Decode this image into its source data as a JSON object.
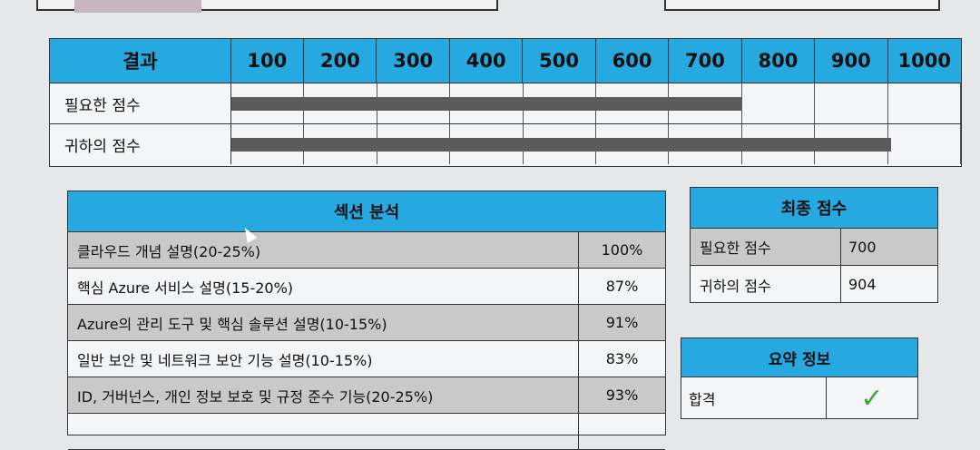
{
  "score_table": {
    "result_label": "결과",
    "scale_labels": [
      "100",
      "200",
      "300",
      "400",
      "500",
      "600",
      "700",
      "800",
      "900",
      "1000"
    ],
    "rows": [
      {
        "label": "필요한 점수",
        "value": 700
      },
      {
        "label": "귀하의 점수",
        "value": 904
      }
    ],
    "max": 1000
  },
  "section_analysis": {
    "title": "섹션 분석",
    "rows": [
      {
        "name": "클라우드 개념 설명(20-25%)",
        "percent": "100%"
      },
      {
        "name": "핵심 Azure 서비스 설명(15-20%)",
        "percent": "87%"
      },
      {
        "name": "Azure의 관리 도구 및 핵심 솔루션 설명(10-15%)",
        "percent": "91%"
      },
      {
        "name": "일반 보안 및 네트워크 보안 기능 설명(10-15%)",
        "percent": "83%"
      },
      {
        "name": "ID, 거버넌스, 개인 정보 보호 및 규정 준수 기능(20-25%)",
        "percent": "93%"
      }
    ]
  },
  "final_score": {
    "title": "최종 점수",
    "rows": [
      {
        "label": "필요한 점수",
        "value": "700"
      },
      {
        "label": "귀하의 점수",
        "value": "904"
      }
    ]
  },
  "summary": {
    "title": "요약 정보",
    "result": "합격",
    "status_icon": "checkmark-icon"
  },
  "colors": {
    "header": "#26a9e0",
    "bar": "#5b5b5b",
    "check": "#3aa73a"
  }
}
